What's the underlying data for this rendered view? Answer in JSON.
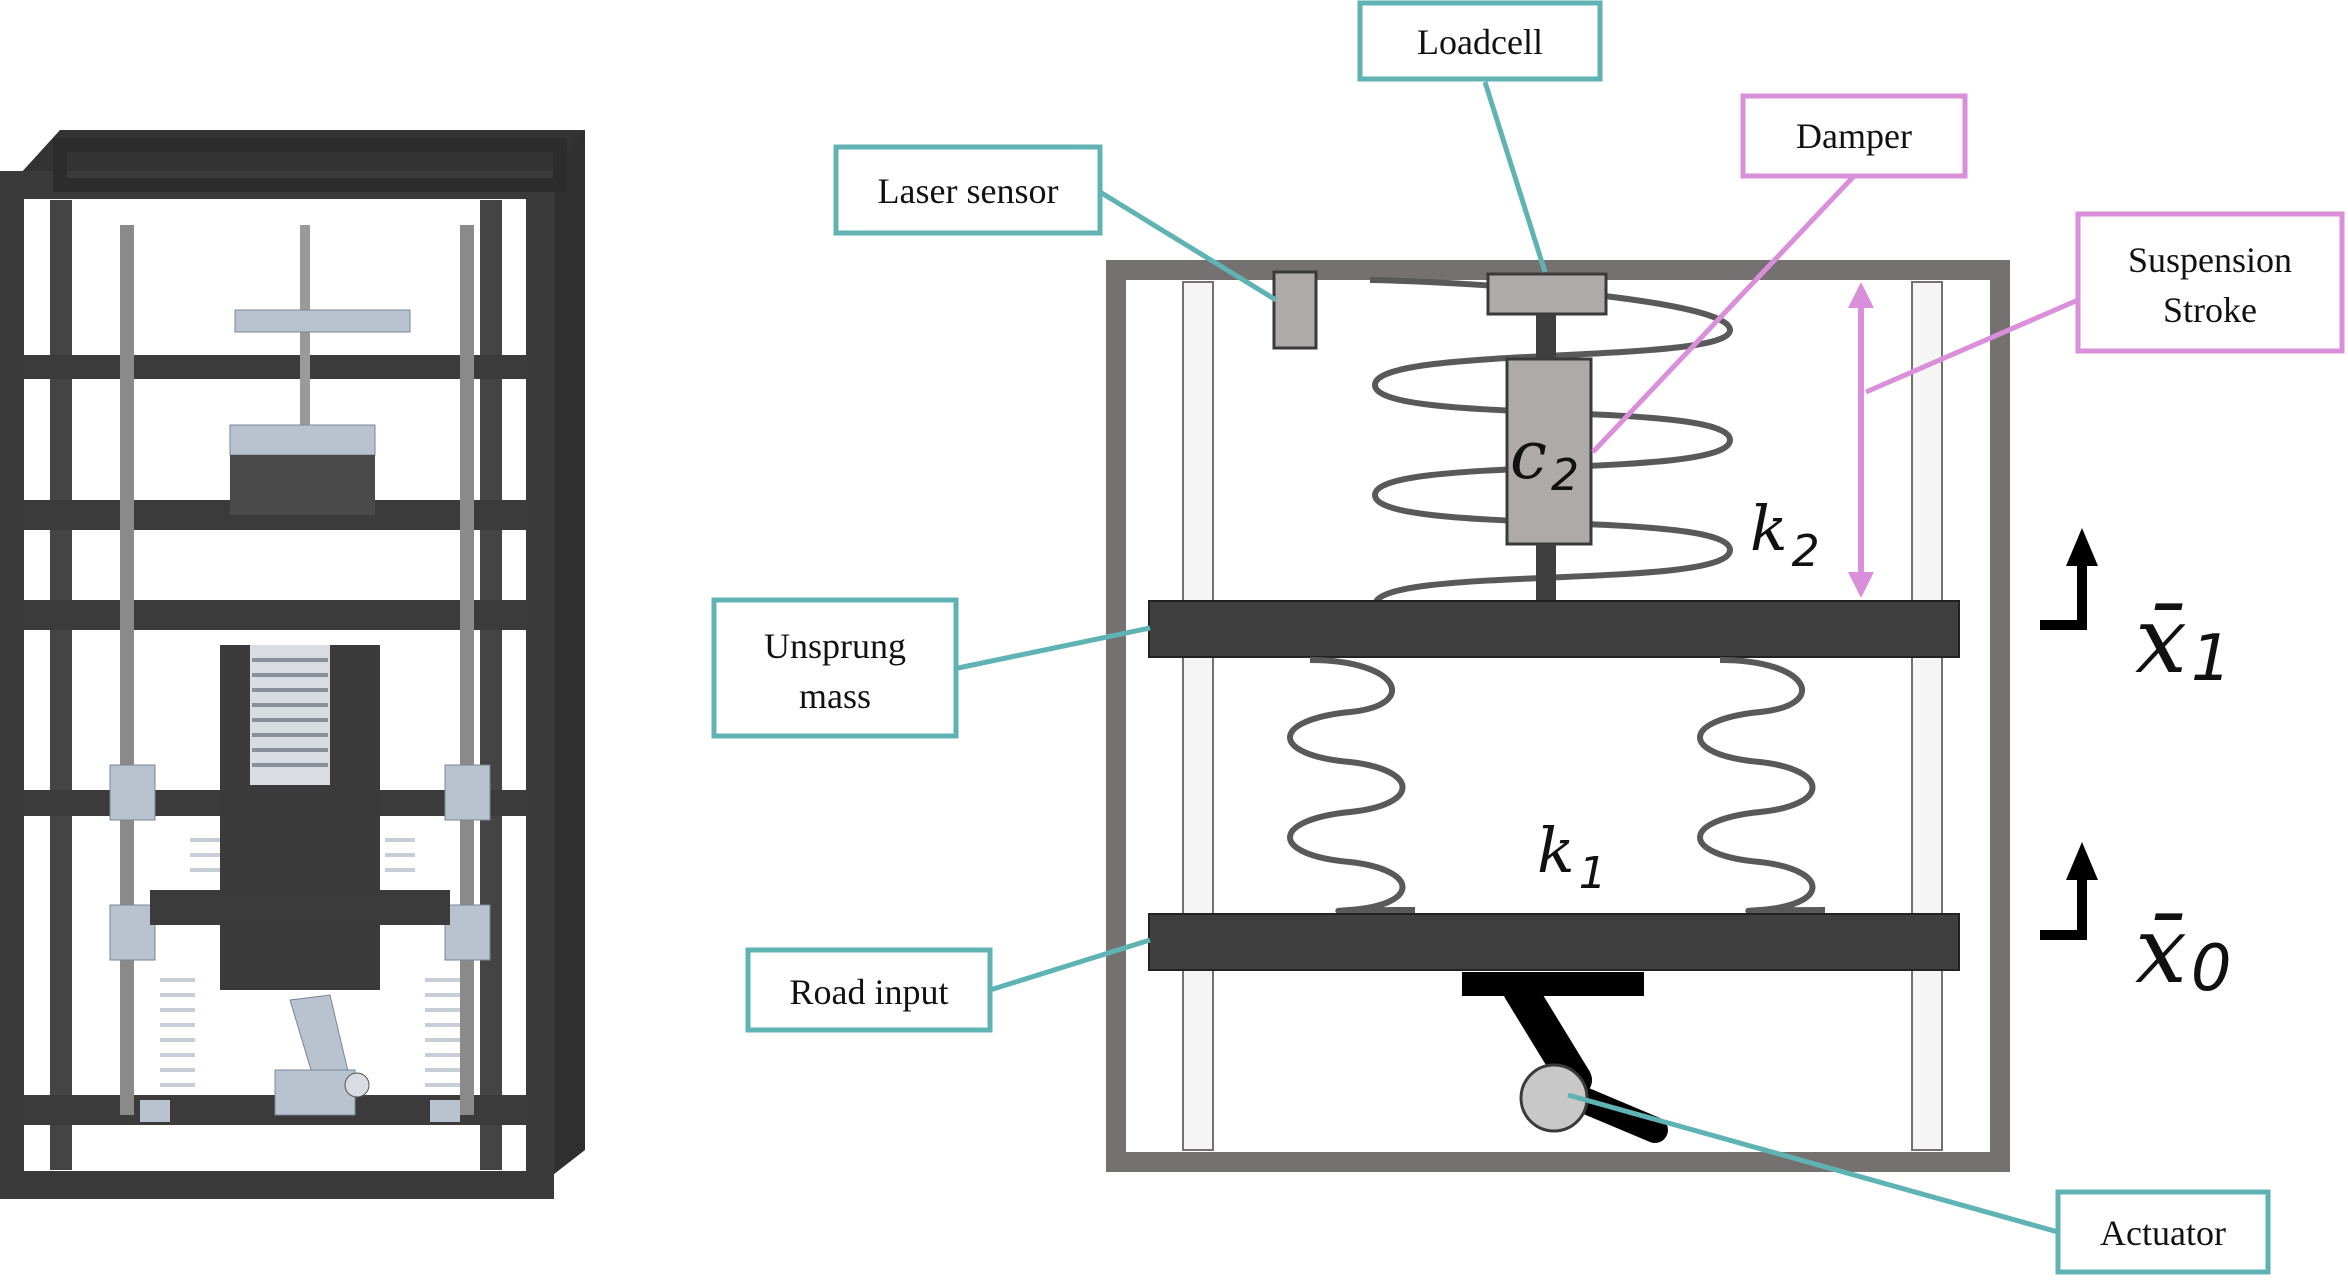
{
  "labels": {
    "loadcell": "Loadcell",
    "damper": "Damper",
    "laser_sensor": "Laser sensor",
    "suspension_line1": "Suspension",
    "suspension_line2": "Stroke",
    "unsprung_line1": "Unsprung",
    "unsprung_line2": "mass",
    "road_input": "Road input",
    "actuator": "Actuator"
  },
  "symbols": {
    "c2_base": "c",
    "c2_sub": "2",
    "k2_base": "k",
    "k2_sub": "2",
    "k1_base": "k",
    "k1_sub": "1",
    "x1_base": "x̄",
    "x1_sub": "1",
    "x0_base": "x̄",
    "x0_sub": "0"
  },
  "colors": {
    "teal_callout": "#5fb3b3",
    "pink_callout": "#d98fd9",
    "frame_gray": "#767171",
    "plate_dark": "#3f3f3f",
    "spring_gray": "#595959",
    "cad_frame": "#3a3a3a",
    "cad_part": "#b9c3d0"
  },
  "icons": [
    "up-arrow-icon"
  ]
}
